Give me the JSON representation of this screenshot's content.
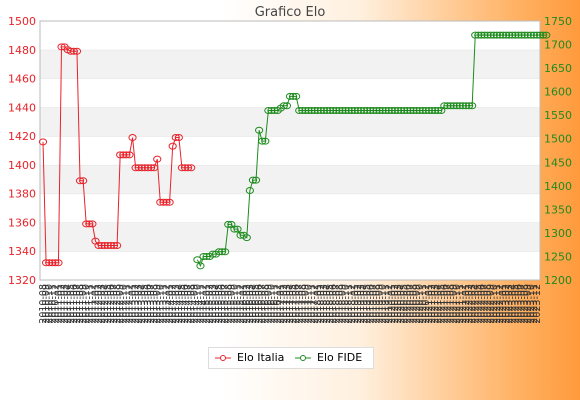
{
  "chart_data": {
    "type": "line",
    "title": "Grafico Elo",
    "colors": {
      "left": "#e8232a",
      "right": "#1e8b1e"
    },
    "yleft": {
      "min": 1320,
      "max": 1500,
      "ticks": [
        1320,
        1340,
        1360,
        1380,
        1400,
        1420,
        1440,
        1460,
        1480,
        1500
      ]
    },
    "yright": {
      "min": 1200,
      "max": 1750,
      "ticks": [
        1200,
        1250,
        1300,
        1350,
        1400,
        1450,
        1500,
        1550,
        1600,
        1650,
        1700,
        1750
      ]
    },
    "x_labels": [
      "2010-08",
      "2010-09",
      "2010-10",
      "2010-11",
      "2010-12",
      "2011-01",
      "2011-02",
      "2011-03",
      "2011-04",
      "2011-05",
      "2011-06",
      "2011-07",
      "2011-08",
      "2011-09",
      "2011-10",
      "2011-11",
      "2011-12",
      "2012-01",
      "2012-02",
      "2012-03",
      "2012-04",
      "2012-05",
      "2012-06",
      "2012-07",
      "2012-08",
      "2012-09",
      "2012-10",
      "2012-11",
      "2012-12",
      "2013-01",
      "2013-02",
      "2013-03",
      "2013-04",
      "2013-05",
      "2013-06",
      "2013-07",
      "2013-08",
      "2013-09",
      "2013-10",
      "2013-11",
      "2013-12",
      "2014-01",
      "2014-02",
      "2014-03",
      "2014-04",
      "2014-05",
      "2014-06",
      "2014-07",
      "2014-08",
      "2014-09",
      "2014-10",
      "2014-11",
      "2014-12",
      "2015-01",
      "2015-02",
      "2015-03",
      "2015-04",
      "2015-05",
      "2015-06",
      "2015-07",
      "2015-08",
      "2015-09",
      "2015-10",
      "2015-11",
      "2015-12",
      "2016-01",
      "2016-02",
      "2016-03",
      "2016-04",
      "2016-05",
      "2016-06",
      "2016-07",
      "2016-08",
      "2016-09",
      "2016-10",
      "2016-11",
      "2016-12",
      "2017-01",
      "2017-02",
      "2017-03",
      "2017-04",
      "2017-05",
      "2017-06",
      "2017-07",
      "2017-08",
      "2017-09",
      "2017-10",
      "2017-11",
      "2017-12",
      "2018-01",
      "2018-02",
      "2018-03",
      "2018-04",
      "2018-05",
      "2018-06",
      "2018-07",
      "2018-08",
      "2018-09",
      "2018-10",
      "2018-11",
      "2018-12",
      "2019-01",
      "2019-02",
      "2019-03",
      "2019-04",
      "2019-05",
      "2019-06",
      "2019-07",
      "2019-08",
      "2019-09",
      "2019-10",
      "2019-11",
      "2019-12",
      "2020-01",
      "2020-02",
      "2020-03",
      "2020-04",
      "2020-05",
      "2020-06",
      "2020-07",
      "2020-08",
      "2020-09",
      "2020-10",
      "2020-11",
      "2020-12",
      "2021-01",
      "2021-02",
      "2021-03",
      "2021-04",
      "2021-05",
      "2021-06",
      "2021-07",
      "2021-08",
      "2021-09",
      "2021-10",
      "2021-11",
      "2021-12",
      "2022-01",
      "2022-02",
      "2022-03",
      "2022-04",
      "2022-05",
      "2022-06",
      "2022-07",
      "2022-08",
      "2022-09",
      "2022-10",
      "2022-11",
      "2022-12",
      "2023-01",
      "2023-02",
      "2023-03",
      "2023-04",
      "2023-05",
      "2023-06",
      "2023-07",
      "2023-08",
      "2023-09",
      "2023-10",
      "2023-11",
      "2023-12"
    ],
    "series": [
      {
        "name": "Elo Italia",
        "axis": "left",
        "values": [
          1416,
          1332,
          1332,
          1332,
          1332,
          1332,
          1482,
          1482,
          1480,
          1479,
          1479,
          1479,
          1389,
          1389,
          1359,
          1359,
          1359,
          1347,
          1344,
          1344,
          1344,
          1344,
          1344,
          1344,
          1344,
          1407,
          1407,
          1407,
          1407,
          1419,
          1398,
          1398,
          1398,
          1398,
          1398,
          1398,
          1398,
          1404,
          1374,
          1374,
          1374,
          1374,
          1413,
          1419,
          1419,
          1398,
          1398,
          1398,
          1398
        ]
      },
      {
        "name": "Elo FIDE",
        "axis": "right",
        "values": [
          null,
          null,
          null,
          null,
          null,
          null,
          null,
          null,
          null,
          null,
          null,
          null,
          null,
          null,
          null,
          null,
          null,
          null,
          null,
          null,
          null,
          null,
          null,
          null,
          null,
          null,
          null,
          null,
          null,
          null,
          null,
          null,
          null,
          null,
          null,
          null,
          null,
          null,
          null,
          null,
          null,
          null,
          null,
          null,
          null,
          null,
          null,
          null,
          null,
          null,
          1243,
          1230,
          1250,
          1250,
          1250,
          1255,
          1255,
          1260,
          1260,
          1260,
          1318,
          1318,
          1308,
          1308,
          1295,
          1295,
          1290,
          1390,
          1412,
          1412,
          1518,
          1495,
          1495,
          1560,
          1560,
          1560,
          1560,
          1565,
          1570,
          1570,
          1590,
          1590,
          1590,
          1560,
          1560,
          1560,
          1560,
          1560,
          1560,
          1560,
          1560,
          1560,
          1560,
          1560,
          1560,
          1560,
          1560,
          1560,
          1560,
          1560,
          1560,
          1560,
          1560,
          1560,
          1560,
          1560,
          1560,
          1560,
          1560,
          1560,
          1560,
          1560,
          1560,
          1560,
          1560,
          1560,
          1560,
          1560,
          1560,
          1560,
          1560,
          1560,
          1560,
          1560,
          1560,
          1560,
          1560,
          1560,
          1560,
          1560,
          1570,
          1570,
          1570,
          1570,
          1570,
          1570,
          1570,
          1570,
          1570,
          1570,
          1720,
          1720,
          1720,
          1720,
          1720,
          1720,
          1720,
          1720,
          1720,
          1720,
          1720,
          1720,
          1720,
          1720,
          1720,
          1720,
          1720,
          1720,
          1720,
          1720,
          1720,
          1720,
          1720,
          1720
        ]
      }
    ]
  }
}
